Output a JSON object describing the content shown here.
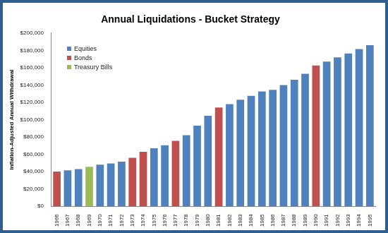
{
  "chart_data": {
    "type": "bar",
    "title": "Annual Liquidations - Bucket Strategy",
    "y_label": "Inflation-Adjusted Annual Withdrawal",
    "categories": [
      "1966",
      "1967",
      "1968",
      "1969",
      "1970",
      "1971",
      "1972",
      "1973",
      "1974",
      "1975",
      "1976",
      "1977",
      "1978",
      "1979",
      "1980",
      "1981",
      "1982",
      "1983",
      "1984",
      "1985",
      "1986",
      "1987",
      "1988",
      "1989",
      "1990",
      "1991",
      "1992",
      "1993",
      "1994",
      "1995"
    ],
    "series": [
      {
        "name": "Equities",
        "color": "#4f81bd",
        "values": [
          null,
          41500,
          43000,
          null,
          48000,
          49500,
          51500,
          null,
          null,
          67000,
          70500,
          null,
          82000,
          93000,
          104500,
          null,
          118000,
          123000,
          127500,
          132500,
          134500,
          140000,
          146000,
          153000,
          null,
          167000,
          172000,
          176500,
          181500,
          186000
        ]
      },
      {
        "name": "Bonds",
        "color": "#c0504d",
        "values": [
          40000,
          null,
          null,
          null,
          null,
          null,
          null,
          56000,
          63000,
          null,
          null,
          75500,
          null,
          null,
          null,
          114000,
          null,
          null,
          null,
          null,
          null,
          null,
          null,
          null,
          162500,
          null,
          null,
          null,
          null,
          null
        ]
      },
      {
        "name": "Treasury Bills",
        "color": "#9bbb59",
        "values": [
          null,
          null,
          null,
          45500,
          null,
          null,
          null,
          null,
          null,
          null,
          null,
          null,
          null,
          null,
          null,
          null,
          null,
          null,
          null,
          null,
          null,
          null,
          null,
          null,
          null,
          null,
          null,
          null,
          null,
          null
        ]
      }
    ],
    "ylim": [
      0,
      200000
    ],
    "yticks": [
      {
        "value": 0,
        "label": "$0"
      },
      {
        "value": 20000,
        "label": "$20,000"
      },
      {
        "value": 40000,
        "label": "$40,000"
      },
      {
        "value": 60000,
        "label": "$60,000"
      },
      {
        "value": 80000,
        "label": "$80,000"
      },
      {
        "value": 100000,
        "label": "$100,000"
      },
      {
        "value": 120000,
        "label": "$120,000"
      },
      {
        "value": 140000,
        "label": "$140,000"
      },
      {
        "value": 160000,
        "label": "$160,000"
      },
      {
        "value": 180000,
        "label": "$180,000"
      },
      {
        "value": 200000,
        "label": "$200,000"
      }
    ],
    "grid": false,
    "legend": "top-left"
  }
}
